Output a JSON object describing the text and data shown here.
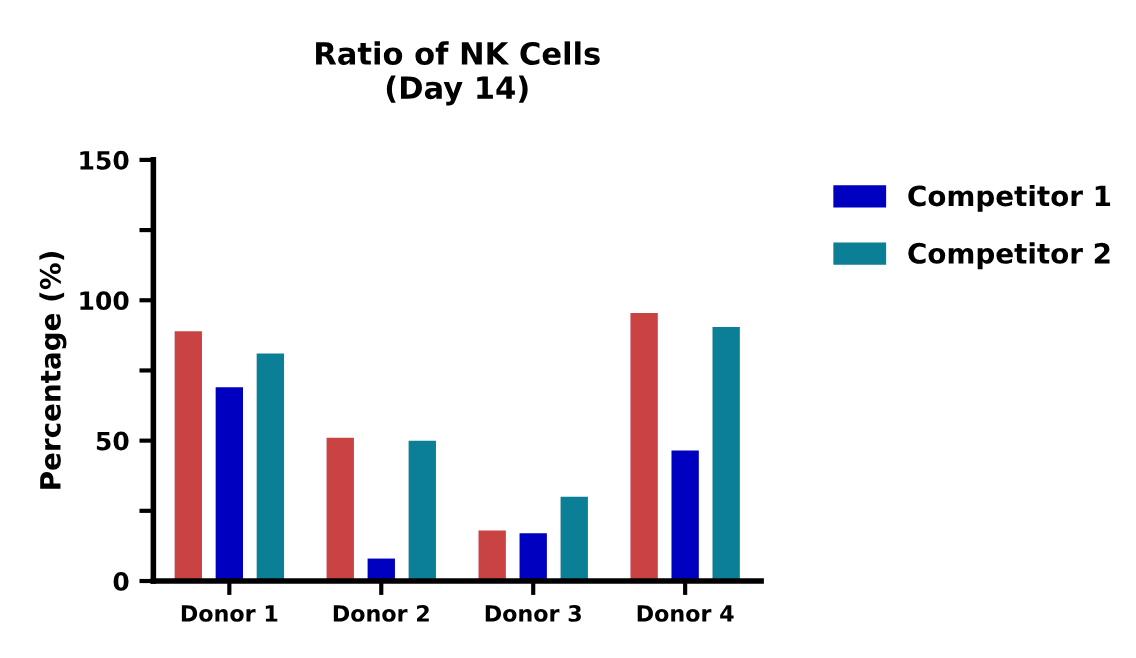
{
  "chart_data": {
    "type": "bar",
    "title": "Ratio of NK Cells\n(Day 14)",
    "ylabel": "Percentage (%)",
    "categories": [
      "Donor 1",
      "Donor 2",
      "Donor 3",
      "Donor 4"
    ],
    "series": [
      {
        "color": "#c94343",
        "values": [
          89,
          51,
          18,
          95.5
        ]
      },
      {
        "name": "Competitor 1",
        "color": "#0000c0",
        "values": [
          69,
          8,
          17,
          46.5
        ]
      },
      {
        "name": "Competitor 2",
        "color": "#0a7f95",
        "values": [
          81,
          50,
          30,
          90.5
        ]
      }
    ],
    "ylim": [
      0,
      150
    ],
    "yticks": [
      0,
      {
        "value": 25,
        "label": null
      },
      50,
      {
        "value": 75,
        "label": null
      },
      100,
      {
        "value": 125,
        "label": null
      },
      150
    ],
    "grid": false,
    "legend": "right"
  }
}
